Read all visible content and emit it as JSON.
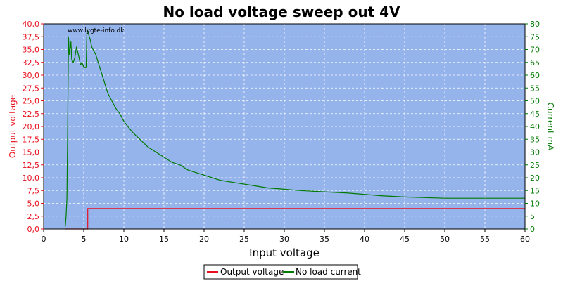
{
  "chart_data": {
    "type": "line",
    "title": "No load voltage sweep out 4V",
    "watermark": "www.lygte-info.dk",
    "xlabel": "Input voltage",
    "ylabel_left": "Output voltage",
    "ylabel_right": "Current mA",
    "xlim": [
      0,
      60
    ],
    "ylim_left": [
      0,
      40
    ],
    "ylim_right": [
      0,
      80
    ],
    "x_ticks": [
      "0",
      "5",
      "10",
      "15",
      "20",
      "25",
      "30",
      "35",
      "40",
      "45",
      "50",
      "55",
      "60"
    ],
    "y_left_ticks": [
      "0,0",
      "2,5",
      "5,0",
      "7,5",
      "10,0",
      "12,5",
      "15,0",
      "17,5",
      "20,0",
      "22,5",
      "25,0",
      "27,5",
      "30,0",
      "32,5",
      "35,0",
      "37,5",
      "40,0"
    ],
    "y_right_ticks": [
      "0",
      "5",
      "10",
      "15",
      "20",
      "25",
      "30",
      "35",
      "40",
      "45",
      "50",
      "55",
      "60",
      "65",
      "70",
      "75",
      "80"
    ],
    "grid": true,
    "background_color": "#95b4ec",
    "legend_position": "bottom-center",
    "series": [
      {
        "name": "Output voltage",
        "axis": "left",
        "color": "#e8101e",
        "x": [
          2.7,
          5.5,
          5.5,
          60
        ],
        "y": [
          0.0,
          0.0,
          4.0,
          4.0
        ]
      },
      {
        "name": "No load current",
        "axis": "right",
        "color": "#007a00",
        "x": [
          2.7,
          2.8,
          2.9,
          3.0,
          3.1,
          3.2,
          3.4,
          3.5,
          3.7,
          3.9,
          4.1,
          4.4,
          4.6,
          4.8,
          5.0,
          5.3,
          5.4,
          5.6,
          5.8,
          6.0,
          6.5,
          7.0,
          7.5,
          8.0,
          8.5,
          9.0,
          9.5,
          10.0,
          11.0,
          12.0,
          13.0,
          14.0,
          15.0,
          16.0,
          17.0,
          18.0,
          19.0,
          20.0,
          21.0,
          22.0,
          24.0,
          26.0,
          28.0,
          30.0,
          32.0,
          35.0,
          38.0,
          40.0,
          42.0,
          45.0,
          50.0,
          55.0,
          60.0
        ],
        "y": [
          1,
          5,
          12,
          40,
          75,
          68,
          73,
          66,
          65,
          67,
          71,
          67,
          64,
          65,
          63,
          63,
          78,
          76,
          74,
          71,
          68,
          63,
          58,
          53,
          50,
          47,
          45,
          42,
          38,
          35,
          32,
          30,
          28,
          26,
          25,
          23,
          22,
          21,
          20,
          19,
          18,
          17,
          16,
          15.5,
          15,
          14.5,
          14,
          13.5,
          13,
          12.5,
          12,
          12,
          12
        ]
      }
    ]
  },
  "legend": {
    "items": [
      {
        "label": "Output voltage",
        "color": "#e8101e"
      },
      {
        "label": "No load current",
        "color": "#007a00"
      }
    ]
  }
}
